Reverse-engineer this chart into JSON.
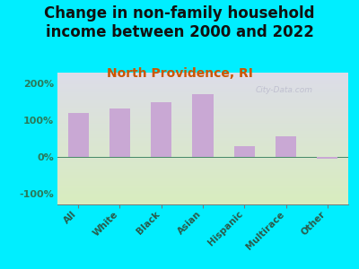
{
  "title": "Change in non-family household\nincome between 2000 and 2022",
  "subtitle": "North Providence, RI",
  "categories": [
    "All",
    "White",
    "Black",
    "Asian",
    "Hispanic",
    "Multirace",
    "Other"
  ],
  "values": [
    120,
    132,
    150,
    170,
    30,
    55,
    -5
  ],
  "bar_color": "#c9a8d4",
  "title_fontsize": 12,
  "subtitle_fontsize": 10,
  "subtitle_color": "#cc5500",
  "title_color": "#111111",
  "background_outer": "#00eeff",
  "background_inner_top": "#dcdce8",
  "background_inner_bottom": "#d8edbe",
  "ytick_color": "#2a7a5a",
  "xtick_color": "#2a5a4a",
  "ylim": [
    -130,
    230
  ],
  "yticks": [
    -100,
    0,
    100,
    200
  ],
  "watermark": "City-Data.com"
}
